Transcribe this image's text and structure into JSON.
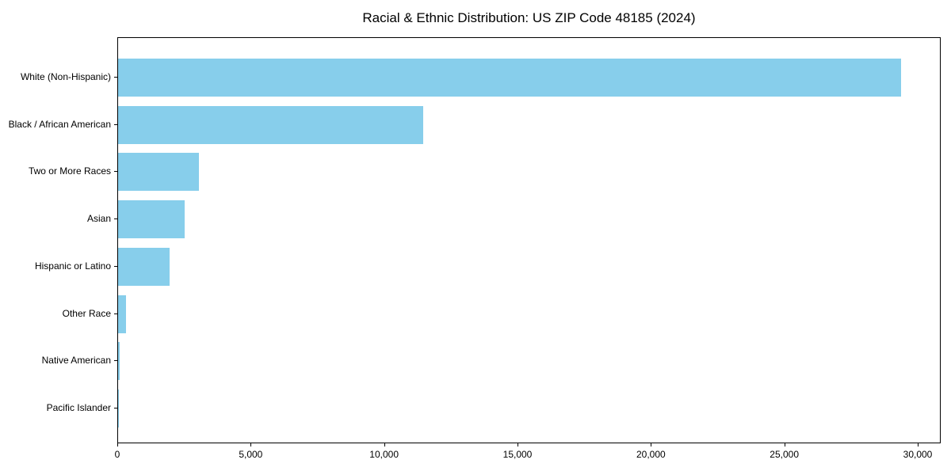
{
  "chart_data": {
    "type": "bar",
    "orientation": "horizontal",
    "title": "Racial & Ethnic Distribution: US ZIP Code 48185 (2024)",
    "categories": [
      "White (Non-Hispanic)",
      "Black / African American",
      "Two or More Races",
      "Asian",
      "Hispanic or Latino",
      "Other Race",
      "Native American",
      "Pacific Islander"
    ],
    "values": [
      29350,
      11450,
      3030,
      2500,
      1920,
      290,
      60,
      15
    ],
    "xlabel": "",
    "ylabel": "",
    "xlim": [
      0,
      30830
    ],
    "x_ticks": [
      0,
      5000,
      10000,
      15000,
      20000,
      25000,
      30000
    ],
    "x_tick_labels": [
      "0",
      "5,000",
      "10,000",
      "15,000",
      "20,000",
      "25,000",
      "30,000"
    ],
    "bar_color": "#87CEEB",
    "axis_color": "#000000",
    "background_color": "#FFFFFF",
    "grid": false,
    "legend": null
  }
}
